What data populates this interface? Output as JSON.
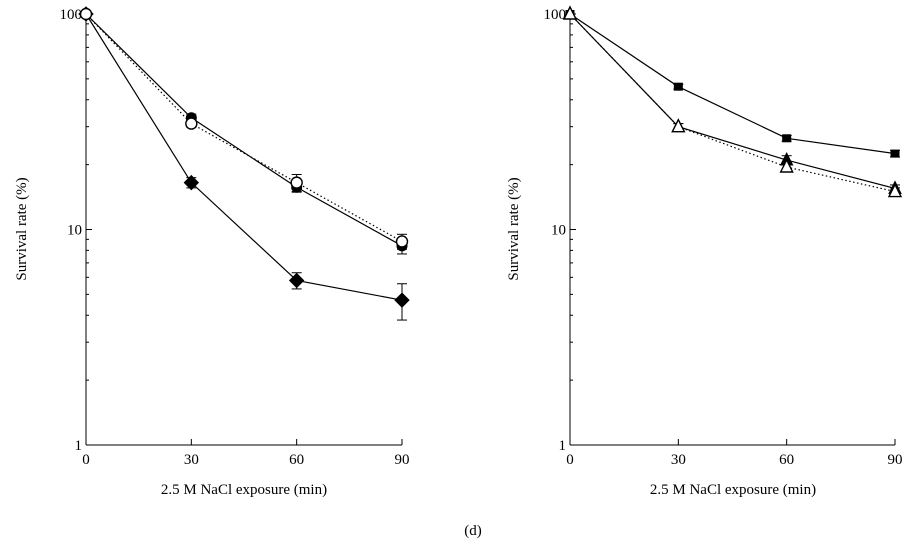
{
  "caption": "(d)",
  "chart_data": [
    {
      "type": "line",
      "title": "",
      "xlabel": "2.5 M NaCl exposure (min)",
      "ylabel": "Survival rate (%)",
      "y_scale": "log",
      "xlim": [
        0,
        90
      ],
      "ylim": [
        1,
        100
      ],
      "x_ticks": [
        0,
        30,
        60,
        90
      ],
      "y_ticks": [
        1,
        10,
        100
      ],
      "x_tick_labels": [
        "0",
        "30",
        "60",
        "90"
      ],
      "y_tick_labels": [
        "1",
        "10",
        "100"
      ],
      "grid": false,
      "series": [
        {
          "marker": "diamond-filled",
          "line": "solid",
          "x": [
            0,
            30,
            60,
            90
          ],
          "y": [
            100,
            16.5,
            5.8,
            4.7
          ],
          "error": [
            0,
            0.9,
            0.5,
            0.9
          ]
        },
        {
          "marker": "circle-filled",
          "line": "solid",
          "x": [
            0,
            30,
            60,
            90
          ],
          "y": [
            100,
            33,
            15.7,
            8.4
          ],
          "error": [
            0,
            1.3,
            0.8,
            0.7
          ]
        },
        {
          "marker": "circle-open",
          "line": "dotted",
          "x": [
            0,
            30,
            60,
            90
          ],
          "y": [
            100,
            31,
            16.5,
            8.8
          ],
          "error": [
            0,
            1.2,
            1.5,
            0.7
          ]
        }
      ]
    },
    {
      "type": "line",
      "title": "",
      "xlabel": "2.5 M NaCl exposure (min)",
      "ylabel": "Survival rate (%)",
      "y_scale": "log",
      "xlim": [
        0,
        90
      ],
      "ylim": [
        1,
        100
      ],
      "x_ticks": [
        0,
        30,
        60,
        90
      ],
      "y_ticks": [
        1,
        10,
        100
      ],
      "x_tick_labels": [
        "0",
        "30",
        "60",
        "90"
      ],
      "y_tick_labels": [
        "1",
        "10",
        "100"
      ],
      "grid": false,
      "series": [
        {
          "marker": "square-filled",
          "line": "solid",
          "x": [
            0,
            30,
            60,
            90
          ],
          "y": [
            100,
            46,
            26.5,
            22.5
          ],
          "error": [
            0,
            1.2,
            0.8,
            0.8
          ]
        },
        {
          "marker": "triangle-filled",
          "line": "solid",
          "x": [
            0,
            30,
            60,
            90
          ],
          "y": [
            100,
            30,
            21,
            15.5
          ],
          "error": [
            0,
            1,
            1,
            0.6
          ]
        },
        {
          "marker": "triangle-open",
          "line": "dotted",
          "x": [
            0,
            30,
            60,
            90
          ],
          "y": [
            100,
            30,
            19.5,
            15
          ],
          "error": [
            0,
            1,
            1,
            0.6
          ]
        }
      ]
    }
  ]
}
